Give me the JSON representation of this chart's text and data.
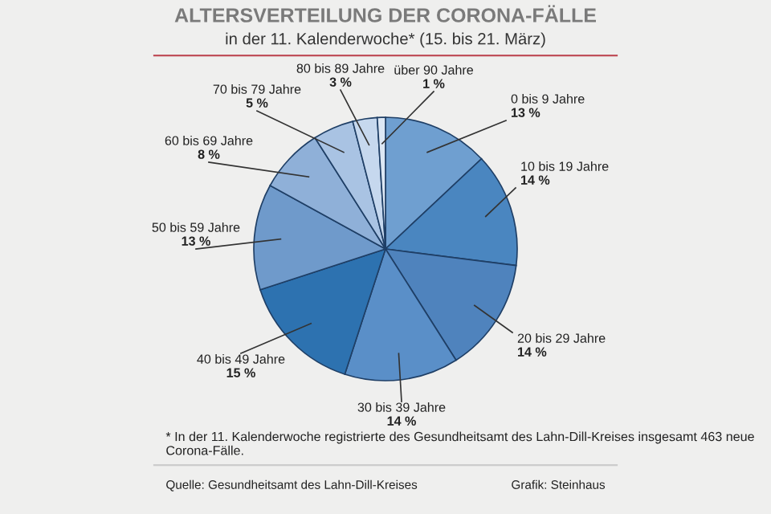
{
  "chart_data": {
    "type": "pie",
    "title": "ALTERSVERTEILUNG DER CORONA-FÄLLE",
    "subtitle": "in der 11. Kalenderwoche* (15. bis 21. März)",
    "categories": [
      "0 bis 9 Jahre",
      "10 bis 19 Jahre",
      "20 bis 29 Jahre",
      "30 bis 39 Jahre",
      "40 bis 49 Jahre",
      "50 bis 59 Jahre",
      "60 bis 69 Jahre",
      "70 bis 79 Jahre",
      "80 bis 89 Jahre",
      "über 90 Jahre"
    ],
    "values": [
      13,
      14,
      14,
      14,
      15,
      13,
      8,
      5,
      3,
      1
    ],
    "value_labels": [
      "13 %",
      "14 %",
      "14 %",
      "14 %",
      "15 %",
      "13 %",
      "8 %",
      "5 %",
      "3 %",
      "1 %"
    ],
    "colors": [
      "#6f9fd0",
      "#4a86c0",
      "#4f83bd",
      "#5a8fc8",
      "#2d72b0",
      "#6f9acb",
      "#8fb0d8",
      "#a9c3e3",
      "#c6d8ee",
      "#dce7f4"
    ],
    "annotations": [
      "* In der 11. Kalenderwoche registrierte des Gesundheitsamt des Lahn-Dill-Kreises insgesamt 463 neue Corona-Fälle.",
      "Quelle: Gesundheitsamt des Lahn-Dill-Kreises",
      "Grafik: Steinhaus"
    ]
  }
}
